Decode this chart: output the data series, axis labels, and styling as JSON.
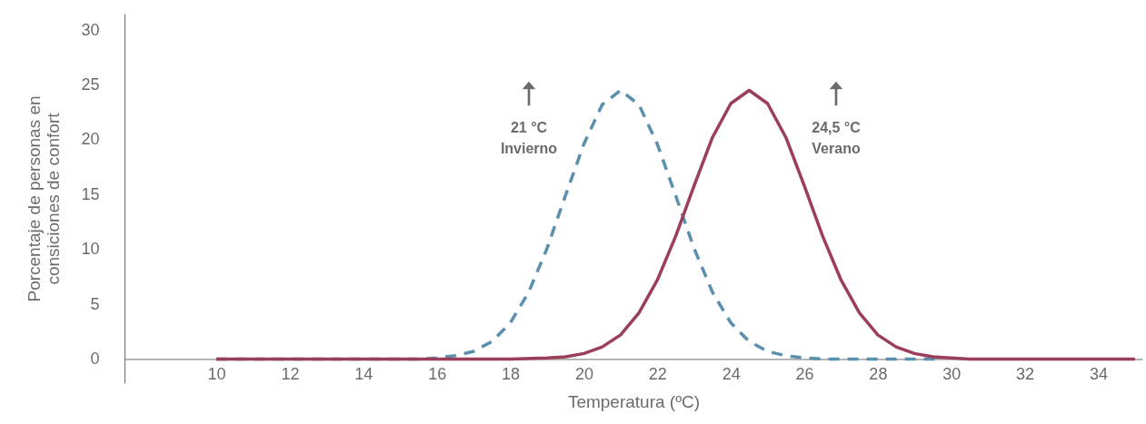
{
  "chart_data": {
    "type": "line",
    "xlabel": "Temperatura (ºC)",
    "ylabel": "Porcentaje de personas en\nconsiciones de confort",
    "xlim": [
      7.5,
      35.2
    ],
    "xticks": [
      10,
      12,
      14,
      16,
      18,
      20,
      22,
      24,
      26,
      28,
      30,
      32,
      34
    ],
    "ylim": [
      -2.2,
      31.5
    ],
    "yticks": [
      0,
      5,
      10,
      15,
      20,
      25,
      30
    ],
    "grid": false,
    "marker": "none",
    "series": [
      {
        "color": "#5b8fae",
        "line_style": "dashed",
        "x": [
          10,
          14,
          15.5,
          16,
          16.5,
          17,
          17.5,
          18,
          18.5,
          19,
          19.5,
          20,
          20.5,
          21,
          21.5,
          22,
          22.5,
          23,
          23.5,
          24,
          24.5,
          25,
          25.5,
          26,
          26.5,
          27,
          29.7
        ],
        "values": [
          0,
          0,
          0,
          0.1,
          0.3,
          0.7,
          1.6,
          3.3,
          6.1,
          10.1,
          14.9,
          19.6,
          23.2,
          24.5,
          23.2,
          19.6,
          14.9,
          10.1,
          6.1,
          3.3,
          1.6,
          0.7,
          0.3,
          0.1,
          0,
          0,
          0
        ]
      },
      {
        "color": "#9b3e5a",
        "line_style": "solid",
        "x": [
          10,
          18,
          19,
          19.5,
          20,
          20.5,
          21,
          21.5,
          22,
          22.5,
          23,
          23.5,
          24,
          24.5,
          25,
          25.5,
          26,
          26.5,
          27,
          27.5,
          28,
          28.5,
          29,
          29.5,
          30.5,
          35
        ],
        "values": [
          0,
          0,
          0.1,
          0.2,
          0.5,
          1.1,
          2.2,
          4.2,
          7.2,
          11.2,
          15.8,
          20.2,
          23.3,
          24.5,
          23.3,
          20.2,
          15.8,
          11.2,
          7.2,
          4.2,
          2.2,
          1.1,
          0.5,
          0.2,
          0,
          0
        ]
      }
    ],
    "annotations": [
      "21 °C\nInvierno",
      "24,5 °C\nVerano"
    ]
  }
}
